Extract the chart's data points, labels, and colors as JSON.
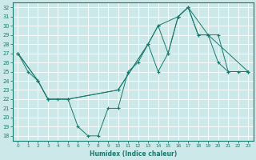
{
  "xlabel": "Humidex (Indice chaleur)",
  "bg_color": "#cce8e8",
  "line_color": "#1a7a6e",
  "grid_color": "#ffffff",
  "xlim": [
    -0.5,
    23.5
  ],
  "ylim": [
    17.5,
    32.5
  ],
  "yticks": [
    18,
    19,
    20,
    21,
    22,
    23,
    24,
    25,
    26,
    27,
    28,
    29,
    30,
    31,
    32
  ],
  "xticks": [
    0,
    1,
    2,
    3,
    4,
    5,
    6,
    7,
    8,
    9,
    10,
    11,
    12,
    13,
    14,
    15,
    16,
    17,
    18,
    19,
    20,
    21,
    22,
    23
  ],
  "line1_x": [
    0,
    1,
    2,
    3,
    4,
    5,
    6,
    7,
    8,
    9,
    10,
    11,
    12,
    13,
    14,
    15,
    16,
    17,
    18,
    19,
    20,
    21,
    22,
    23
  ],
  "line1_y": [
    27,
    25,
    24,
    22,
    22,
    22,
    19,
    18,
    18,
    21,
    21,
    25,
    26,
    28,
    25,
    27,
    31,
    32,
    29,
    29,
    26,
    25,
    25,
    25
  ],
  "line2_x": [
    0,
    2,
    3,
    5,
    10,
    13,
    14,
    16,
    17,
    19,
    23
  ],
  "line2_y": [
    27,
    24,
    22,
    22,
    23,
    28,
    30,
    31,
    32,
    29,
    25
  ],
  "line3_x": [
    0,
    2,
    3,
    5,
    10,
    13,
    14,
    15,
    16,
    17,
    18,
    19,
    20,
    21,
    23
  ],
  "line3_y": [
    27,
    24,
    22,
    22,
    23,
    28,
    30,
    27,
    31,
    32,
    29,
    29,
    29,
    25,
    25
  ]
}
